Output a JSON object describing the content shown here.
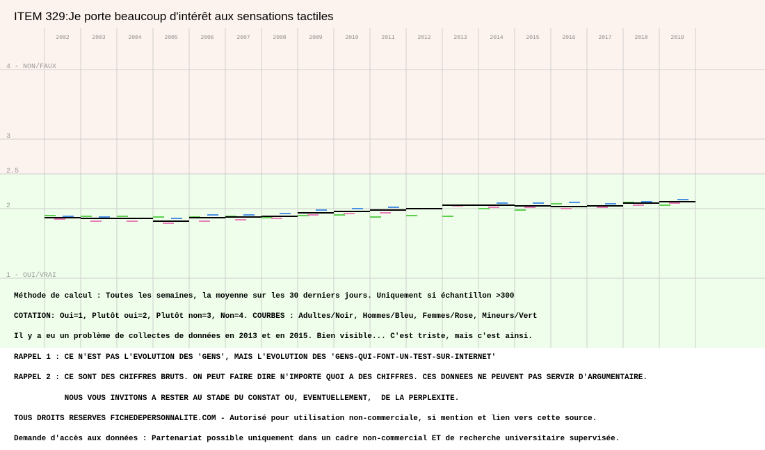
{
  "chart_data": {
    "type": "line",
    "title": "ITEM 329:Je porte beaucoup d'intérêt aux sensations tactiles",
    "x_years": [
      "2002",
      "2003",
      "2004",
      "2005",
      "2006",
      "2007",
      "2008",
      "2009",
      "2010",
      "2011",
      "2012",
      "2013",
      "2014",
      "2015",
      "2016",
      "2017",
      "2018",
      "2019"
    ],
    "ylim": [
      1,
      4
    ],
    "yticks": [
      {
        "value": 4,
        "label": "4 - NON/FAUX"
      },
      {
        "value": 3,
        "label": "3"
      },
      {
        "value": 2.5,
        "label": "2.5"
      },
      {
        "value": 2,
        "label": "2"
      },
      {
        "value": 1,
        "label": "1 - OUI/VRAI"
      }
    ],
    "grid": true,
    "background_zones": [
      {
        "from": 2.5,
        "to": 4,
        "color": "#fdf3ee"
      },
      {
        "from": 1,
        "to": 2.5,
        "color": "#eefeea"
      }
    ],
    "series": [
      {
        "key": "adultes",
        "color": "#000000",
        "values": [
          1.87,
          1.86,
          1.86,
          1.82,
          1.87,
          1.88,
          1.89,
          1.94,
          1.96,
          1.98,
          2.0,
          2.05,
          2.05,
          2.04,
          2.03,
          2.04,
          2.08,
          2.1
        ]
      },
      {
        "key": "hommes",
        "color": "#4a90e2",
        "values": [
          1.89,
          1.88,
          1.86,
          1.86,
          1.91,
          1.91,
          1.93,
          1.98,
          2.0,
          2.02,
          2.0,
          2.05,
          2.08,
          2.08,
          2.09,
          2.07,
          2.1,
          2.13
        ]
      },
      {
        "key": "femmes",
        "color": "#e87fb6",
        "values": [
          1.85,
          1.82,
          1.82,
          1.79,
          1.82,
          1.84,
          1.86,
          1.91,
          1.93,
          1.94,
          2.0,
          2.04,
          2.02,
          2.02,
          2.0,
          2.02,
          2.05,
          2.08
        ]
      },
      {
        "key": "mineurs",
        "color": "#5ccf4d",
        "values": [
          1.9,
          1.89,
          1.89,
          1.88,
          1.88,
          1.89,
          1.87,
          1.9,
          1.91,
          1.88,
          1.9,
          1.89,
          2.0,
          1.98,
          2.07,
          2.04,
          2.09,
          2.05
        ]
      }
    ]
  },
  "notes": [
    "Méthode de calcul : Toutes les semaines, la moyenne sur les 30 derniers jours. Uniquement si échantillon >300",
    "COTATION: Oui=1, Plutôt oui=2, Plutôt non=3, Non=4. COURBES : Adultes/Noir, Hommes/Bleu, Femmes/Rose, Mineurs/Vert",
    "Il y a eu un problème de collectes de données en 2013 et en 2015. Bien visible... C'est triste, mais c'est ainsi.",
    "RAPPEL 1 : CE N'EST PAS L'EVOLUTION DES 'GENS', MAIS L'EVOLUTION DES 'GENS-QUI-FONT-UN-TEST-SUR-INTERNET'",
    "RAPPEL 2 : CE SONT DES CHIFFRES BRUTS. ON PEUT FAIRE DIRE N'IMPORTE QUOI A DES CHIFFRES. CES DONNEES NE PEUVENT PAS SERVIR D'ARGUMENTAIRE.",
    "           NOUS VOUS INVITONS A RESTER AU STADE DU CONSTAT OU, EVENTUELLEMENT,  DE LA PERPLEXITE.",
    "TOUS DROITS RESERVES FICHEDEPERSONNALITE.COM - Autorisé pour utilisation non-commerciale, si mention et lien vers cette source.",
    "Demande d'accès aux données : Partenariat possible uniquement dans un cadre non-commercial ET de recherche universitaire supervisée."
  ]
}
